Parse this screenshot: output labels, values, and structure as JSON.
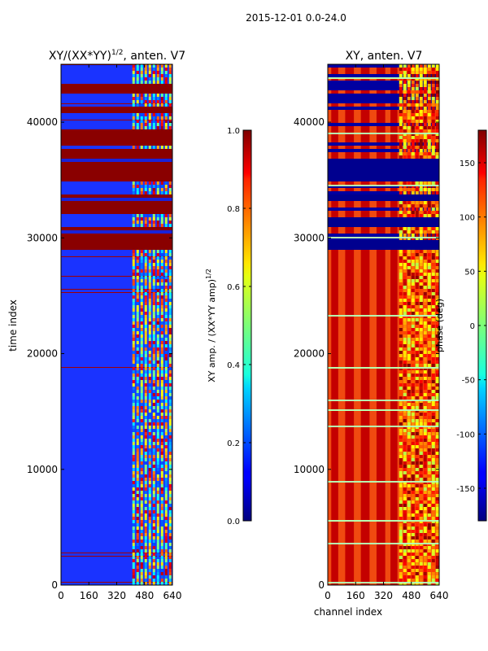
{
  "figure_title": "2015-12-01 0.0-24.0",
  "chart_data": [
    {
      "type": "heatmap",
      "title_main": "XY/(XX*YY)",
      "title_exp": "1/2",
      "title_suffix": ", anten. V7",
      "xlabel": "",
      "ylabel": "time index",
      "xlim": [
        0,
        640
      ],
      "ylim": [
        0,
        45000
      ],
      "xticks": [
        0,
        160,
        320,
        480,
        640
      ],
      "yticks": [
        0,
        10000,
        20000,
        30000,
        40000
      ],
      "colorbar": {
        "label_main": "XY amp. / (XX*YY amp)",
        "label_exp": "1/2",
        "range": [
          0.0,
          1.0
        ],
        "ticks": [
          "0.0",
          "0.2",
          "0.4",
          "0.6",
          "0.8",
          "1.0"
        ],
        "tick_values": [
          0.0,
          0.2,
          0.4,
          0.6,
          0.8,
          1.0
        ]
      },
      "saturated_bands": [
        [
          29200,
          31200
        ],
        [
          32300,
          33900
        ],
        [
          35000,
          37800
        ],
        [
          38200,
          39600
        ],
        [
          40800,
          41600
        ],
        [
          42500,
          43400
        ]
      ],
      "active_channels": [
        410,
        640
      ],
      "description_values": "background ~0.15, high channels 0.3-0.9"
    },
    {
      "type": "heatmap",
      "title_main": "XY, anten. V7",
      "xlabel": "channel index",
      "ylabel": "",
      "xlim": [
        0,
        640
      ],
      "ylim": [
        0,
        45000
      ],
      "xticks": [
        0,
        160,
        320,
        480,
        640
      ],
      "yticks": [
        0,
        10000,
        20000,
        30000,
        40000
      ],
      "colorbar": {
        "label_main": "phase (deg)",
        "range": [
          -180,
          180
        ],
        "ticks": [
          "-150",
          "-100",
          "-50",
          "0",
          "50",
          "100",
          "150"
        ],
        "tick_values": [
          -150,
          -100,
          -50,
          0,
          50,
          100,
          150
        ]
      },
      "red_stripes_channels": [
        [
          20,
          60
        ],
        [
          100,
          150
        ],
        [
          190,
          240
        ],
        [
          280,
          330
        ],
        [
          360,
          400
        ]
      ],
      "blue_bands": [
        [
          29200,
          30000
        ],
        [
          33200,
          33900
        ],
        [
          35000,
          37000
        ],
        [
          31000,
          32000
        ]
      ]
    }
  ]
}
